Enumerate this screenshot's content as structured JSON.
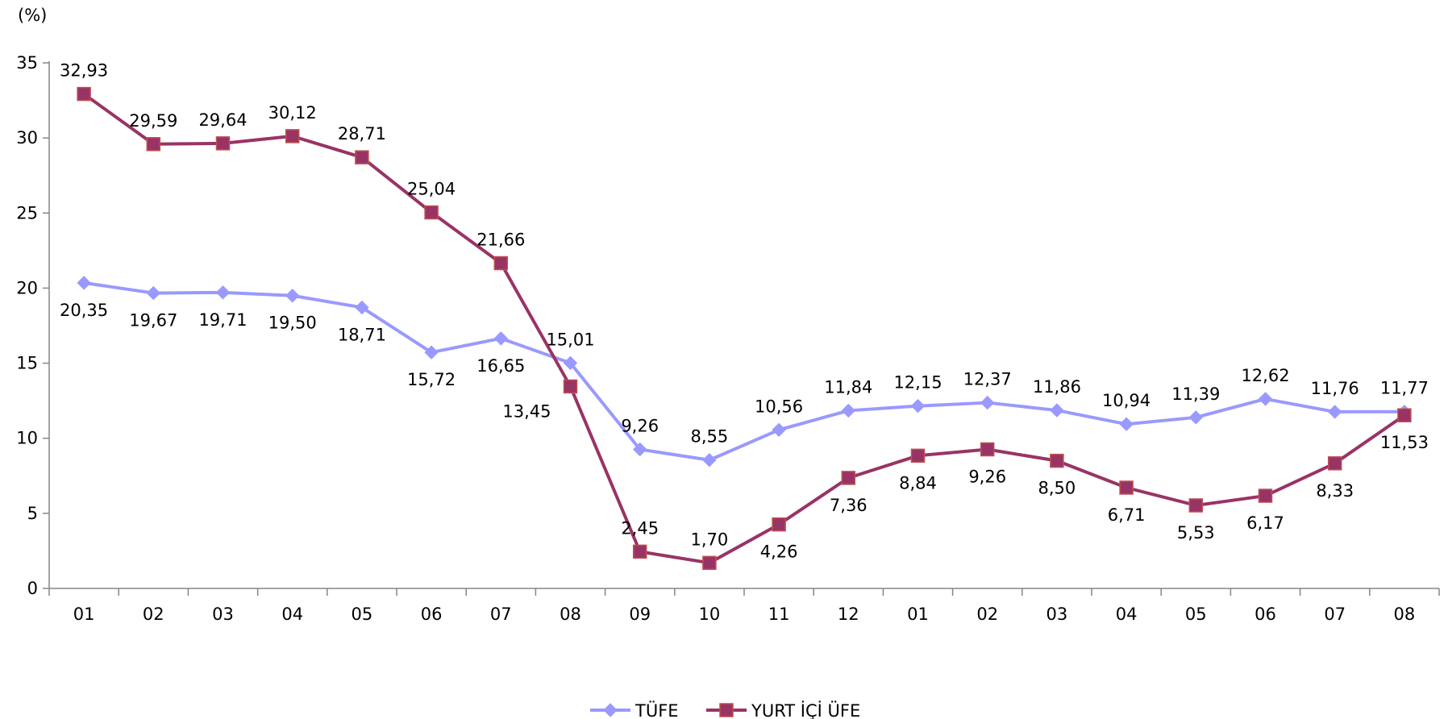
{
  "chart_data": {
    "type": "line",
    "ylabel": "(%)",
    "ylim": [
      0,
      35
    ],
    "yticks": [
      0,
      5,
      10,
      15,
      20,
      25,
      30,
      35
    ],
    "categories": [
      "01",
      "02",
      "03",
      "04",
      "05",
      "06",
      "07",
      "08",
      "09",
      "10",
      "11",
      "12",
      "01",
      "02",
      "03",
      "04",
      "05",
      "06",
      "07",
      "08"
    ],
    "grid": false,
    "legend": "bottom-center",
    "series": [
      {
        "name": "TÜFE",
        "color": "#9999ff",
        "marker": "diamond",
        "values": [
          20.35,
          19.67,
          19.71,
          19.5,
          18.71,
          15.72,
          16.65,
          15.01,
          9.26,
          8.55,
          10.56,
          11.84,
          12.15,
          12.37,
          11.86,
          10.94,
          11.39,
          12.62,
          11.76,
          11.77
        ],
        "labels": [
          "20,35",
          "19,67",
          "19,71",
          "19,50",
          "18,71",
          "15,72",
          "16,65",
          "15,01",
          "9,26",
          "8,55",
          "10,56",
          "11,84",
          "12,15",
          "12,37",
          "11,86",
          "10,94",
          "11,39",
          "12,62",
          "11,76",
          "11,77"
        ],
        "label_pos": [
          "below",
          "below",
          "below",
          "below",
          "below",
          "below",
          "below",
          "above",
          "above",
          "above",
          "above",
          "above",
          "above",
          "above",
          "above",
          "above",
          "above",
          "above",
          "above",
          "above"
        ]
      },
      {
        "name": "YURT İÇİ ÜFE",
        "color": "#993366",
        "marker": "square",
        "values": [
          32.93,
          29.59,
          29.64,
          30.12,
          28.71,
          25.04,
          21.66,
          13.45,
          2.45,
          1.7,
          4.26,
          7.36,
          8.84,
          9.26,
          8.5,
          6.71,
          5.53,
          6.17,
          8.33,
          11.53
        ],
        "labels": [
          "32,93",
          "29,59",
          "29,64",
          "30,12",
          "28,71",
          "25,04",
          "21,66",
          "13,45",
          "2,45",
          "1,70",
          "4,26",
          "7,36",
          "8,84",
          "9,26",
          "8,50",
          "6,71",
          "5,53",
          "6,17",
          "8,33",
          "11,53"
        ],
        "label_pos": [
          "above",
          "above",
          "above",
          "above",
          "above",
          "above",
          "above",
          "left",
          "above",
          "above",
          "below",
          "below",
          "below",
          "below",
          "below",
          "below",
          "below",
          "below",
          "below",
          "below"
        ]
      }
    ]
  }
}
